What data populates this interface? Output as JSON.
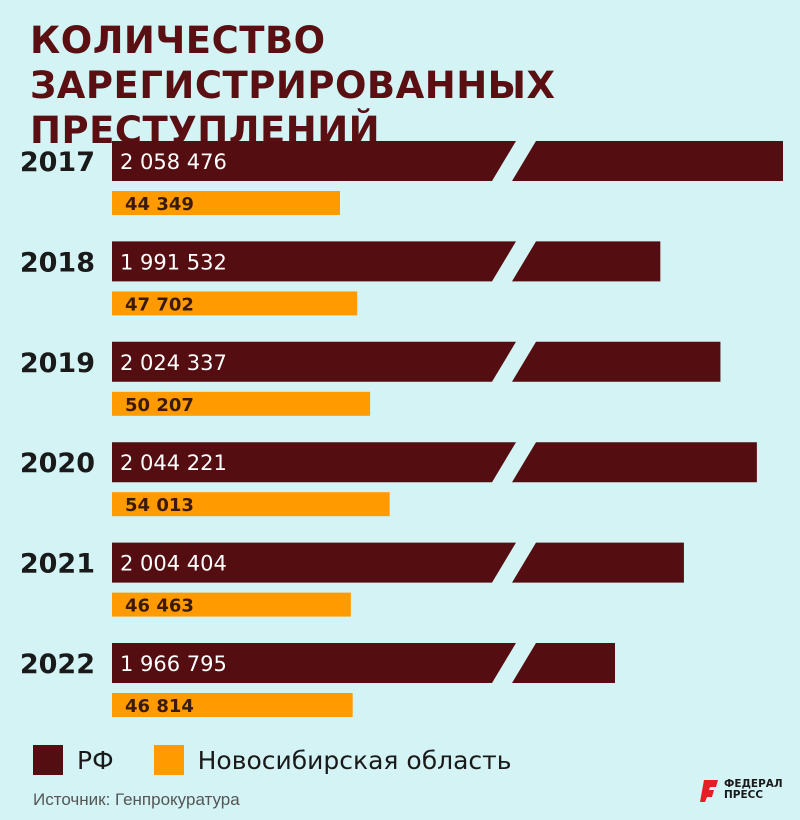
{
  "title": [
    "КОЛИЧЕСТВО ЗАРЕГИСТРИРОВАННЫХ",
    "ПРЕСТУПЛЕНИЙ"
  ],
  "colors": {
    "rf": "#540d10",
    "nso": "#ff9b00",
    "background": "#d4f3f4"
  },
  "chart_data": {
    "type": "bar",
    "orientation": "horizontal",
    "axis_break": true,
    "categories": [
      "2017",
      "2018",
      "2019",
      "2020",
      "2021",
      "2022"
    ],
    "series": [
      {
        "name": "РФ",
        "values": [
          2058476,
          1991532,
          2024337,
          2044221,
          2004404,
          1966795
        ],
        "labels": [
          "2 058 476",
          "1 991 532",
          "2 024 337",
          "2 044 221",
          "2 004 404",
          "1 966 795"
        ]
      },
      {
        "name": "Новосибирская область",
        "values": [
          44349,
          47702,
          50207,
          54013,
          46463,
          46814
        ],
        "labels": [
          "44 349",
          "47 702",
          "50 207",
          "54 013",
          "46 463",
          "46 814"
        ]
      }
    ]
  },
  "legend": {
    "rf": "РФ",
    "nso": "Новосибирская область"
  },
  "source": "Источник: Генпрокуратура",
  "logo": {
    "line1": "ФЕДЕРАЛ",
    "line2": "ПРЕСС",
    "icon": "federalpress-logo-icon"
  }
}
